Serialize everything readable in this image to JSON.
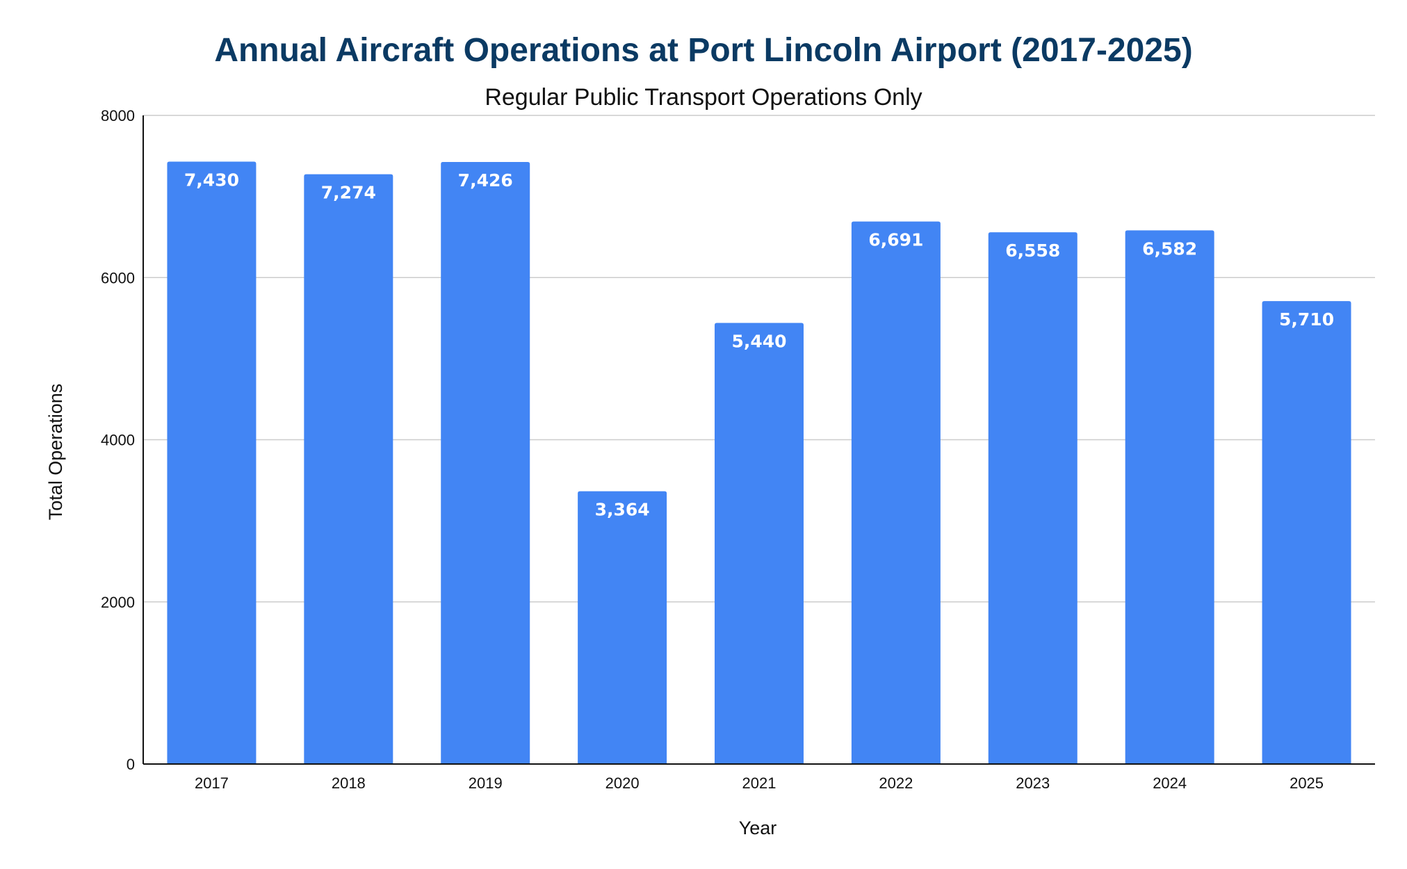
{
  "chart_data": {
    "type": "bar",
    "title": "Annual Aircraft Operations at Port Lincoln Airport (2017-2025)",
    "subtitle": "Regular Public Transport Operations Only",
    "xlabel": "Year",
    "ylabel": "Total Operations",
    "categories": [
      "2017",
      "2018",
      "2019",
      "2020",
      "2021",
      "2022",
      "2023",
      "2024",
      "2025"
    ],
    "values": [
      7430,
      7274,
      7426,
      3364,
      5440,
      6691,
      6558,
      6582,
      5710
    ],
    "data_labels": [
      "7,430",
      "7,274",
      "7,426",
      "3,364",
      "5,440",
      "6,691",
      "6,558",
      "6,582",
      "5,710"
    ],
    "ylim": [
      0,
      8000
    ],
    "yticks": [
      "0",
      "2000",
      "4000",
      "6000",
      "8000"
    ],
    "grid": true,
    "legend": "none",
    "colors": {
      "bar": "#4285f4",
      "title": "#0b3a63",
      "grid": "#cccccc",
      "axis": "#111111"
    }
  }
}
